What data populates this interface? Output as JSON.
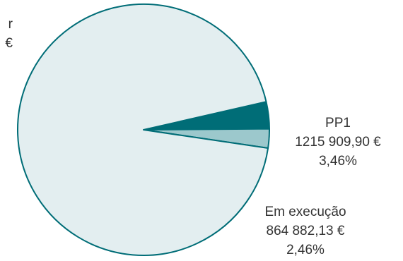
{
  "chart_data": {
    "type": "pie",
    "slices": [
      {
        "label_lines": [
          "r",
          "€"
        ],
        "value": 94.08,
        "color": "#e3eef0"
      },
      {
        "label_lines": [
          "PP1",
          "1215 909,90 €",
          "3,46%"
        ],
        "value": 3.46,
        "color": "#006d77"
      },
      {
        "label_lines": [
          "Em execução",
          "864 882,13 €",
          "2,46%"
        ],
        "value": 2.46,
        "color": "#9cc8cc"
      }
    ],
    "start_angle_deg": 21,
    "stroke_color": "#006d77"
  }
}
